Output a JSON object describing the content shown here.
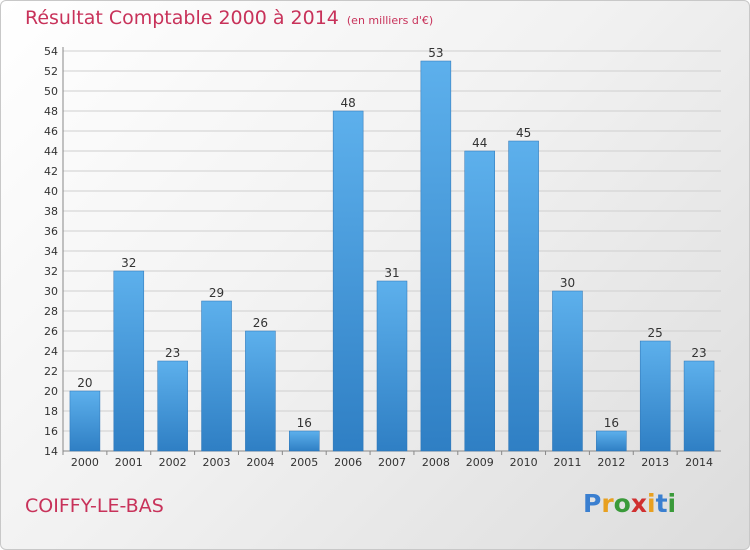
{
  "chart_data": {
    "type": "bar",
    "title": "Résultat Comptable 2000 à 2014",
    "subtitle": "(en milliers d'€)",
    "categories": [
      "2000",
      "2001",
      "2002",
      "2003",
      "2004",
      "2005",
      "2006",
      "2007",
      "2008",
      "2009",
      "2010",
      "2011",
      "2012",
      "2013",
      "2014"
    ],
    "values": [
      20,
      32,
      23,
      29,
      26,
      16,
      48,
      31,
      53,
      44,
      45,
      30,
      16,
      25,
      23
    ],
    "ylim": [
      14,
      54
    ],
    "yticks": [
      14,
      16,
      18,
      20,
      22,
      24,
      26,
      28,
      30,
      32,
      34,
      36,
      38,
      40,
      42,
      44,
      46,
      48,
      50,
      52,
      54
    ],
    "xlabel": "",
    "ylabel": "",
    "grid": true,
    "bar_color": "#4a9ee0"
  },
  "commune": "COIFFY-LE-BAS",
  "logo": {
    "letters": [
      "P",
      "r",
      "o",
      "x",
      "i",
      "t",
      "i"
    ],
    "colors": [
      "#3a7fd0",
      "#e8a020",
      "#3a9a3a",
      "#d03030",
      "#e8a020",
      "#3a7fd0",
      "#3a9a3a"
    ]
  }
}
